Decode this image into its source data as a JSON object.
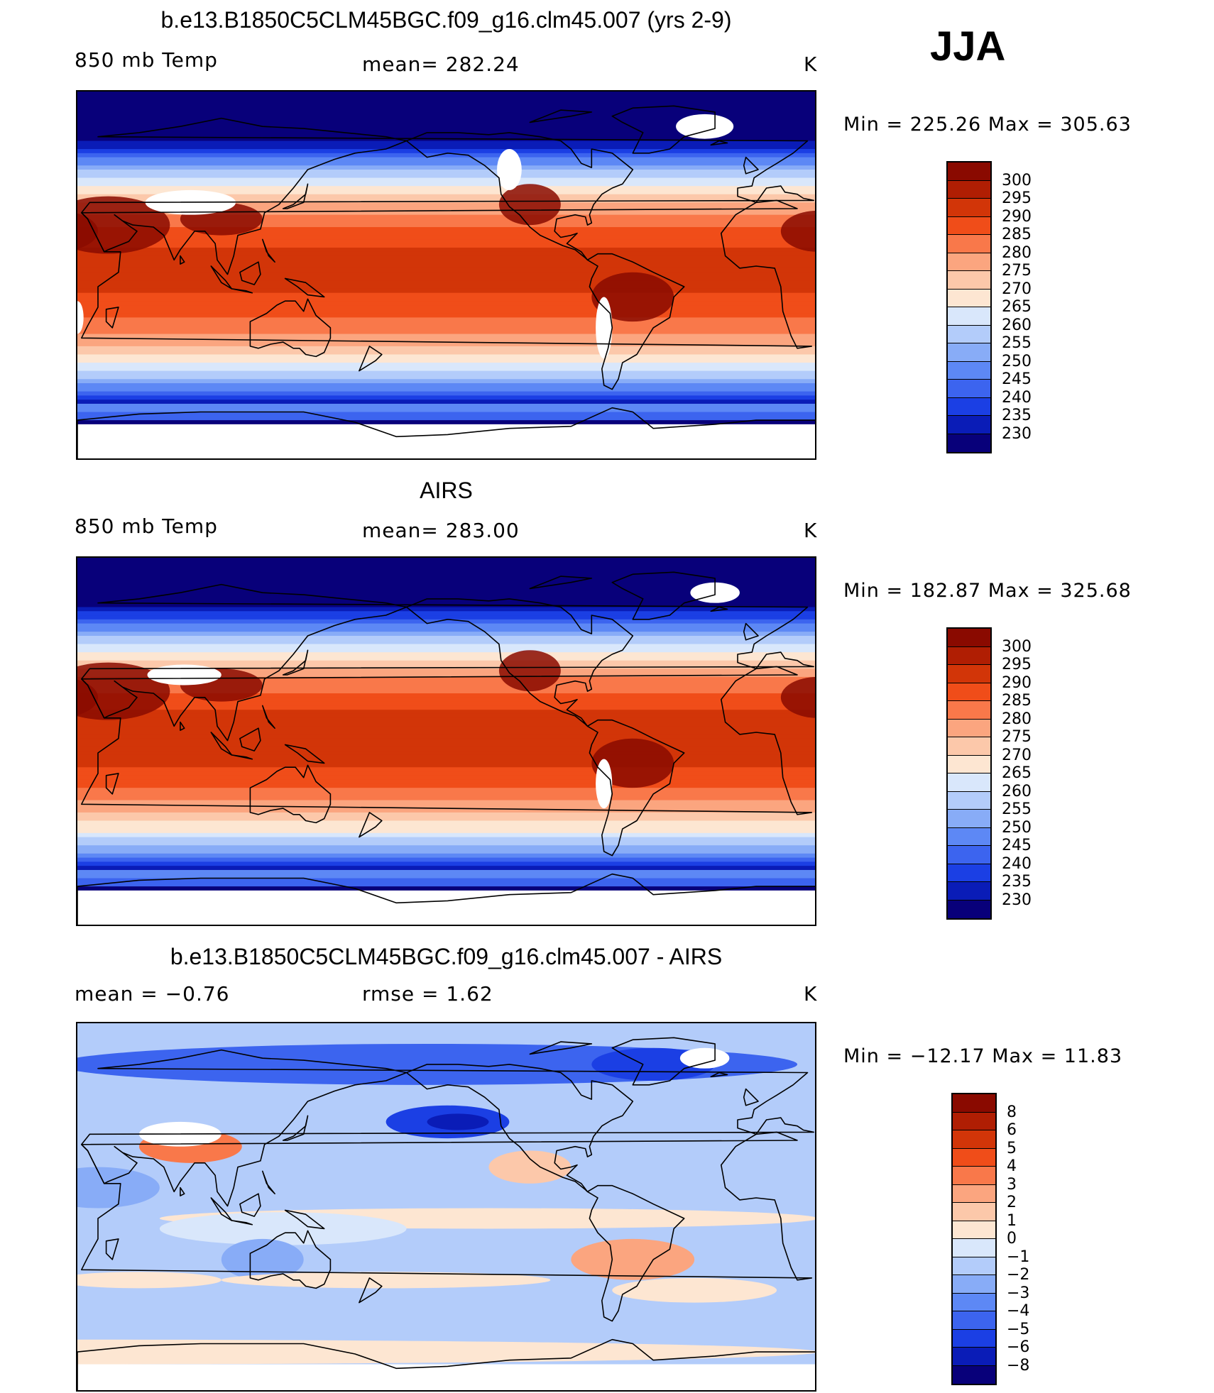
{
  "season": "JJA",
  "palettes": {
    "temp": [
      "#08007a",
      "#0a1cb7",
      "#1b3fe4",
      "#3c64ef",
      "#5d88f5",
      "#88acf7",
      "#b3ccfa",
      "#d9e7fb",
      "#fde6d2",
      "#fcc8aa",
      "#fba57f",
      "#f9784a",
      "#f04d19",
      "#d23508",
      "#b01e03",
      "#8a0a00"
    ],
    "diff": [
      "#08007a",
      "#0a1cb7",
      "#1b3fe4",
      "#3c64ef",
      "#5d88f5",
      "#88acf7",
      "#b3ccfa",
      "#d9e7fb",
      "#fde6d2",
      "#fcc8aa",
      "#fba57f",
      "#f9784a",
      "#f04d19",
      "#d23508",
      "#b01e03",
      "#8a0a00"
    ]
  },
  "panels": [
    {
      "title": "b.e13.B1850C5CLM45BGC.f09_g16.clm45.007 (yrs 2-9)",
      "left_label": "850 mb Temp",
      "center_label": "mean= 282.24",
      "units": "K",
      "minmax": "Min = 225.26 Max = 305.63",
      "field": "model",
      "colorbar_labels": [
        "300",
        "295",
        "290",
        "285",
        "280",
        "275",
        "270",
        "265",
        "260",
        "255",
        "250",
        "245",
        "240",
        "235",
        "230"
      ]
    },
    {
      "title": "AIRS",
      "left_label": "850 mb Temp",
      "center_label": "mean= 283.00",
      "units": "K",
      "minmax": "Min = 182.87 Max = 325.68",
      "field": "obs",
      "colorbar_labels": [
        "300",
        "295",
        "290",
        "285",
        "280",
        "275",
        "270",
        "265",
        "260",
        "255",
        "250",
        "245",
        "240",
        "235",
        "230"
      ]
    },
    {
      "title": "b.e13.B1850C5CLM45BGC.f09_g16.clm45.007 - AIRS",
      "left_label": "mean =  −0.76",
      "center_label": "rmse =    1.62",
      "units": "K",
      "minmax": "Min = −12.17 Max =  11.83",
      "field": "diff",
      "colorbar_labels": [
        "8",
        "6",
        "5",
        "4",
        "3",
        "2",
        "1",
        "0",
        "−1",
        "−2",
        "−3",
        "−4",
        "−5",
        "−6",
        "−8"
      ]
    }
  ]
}
